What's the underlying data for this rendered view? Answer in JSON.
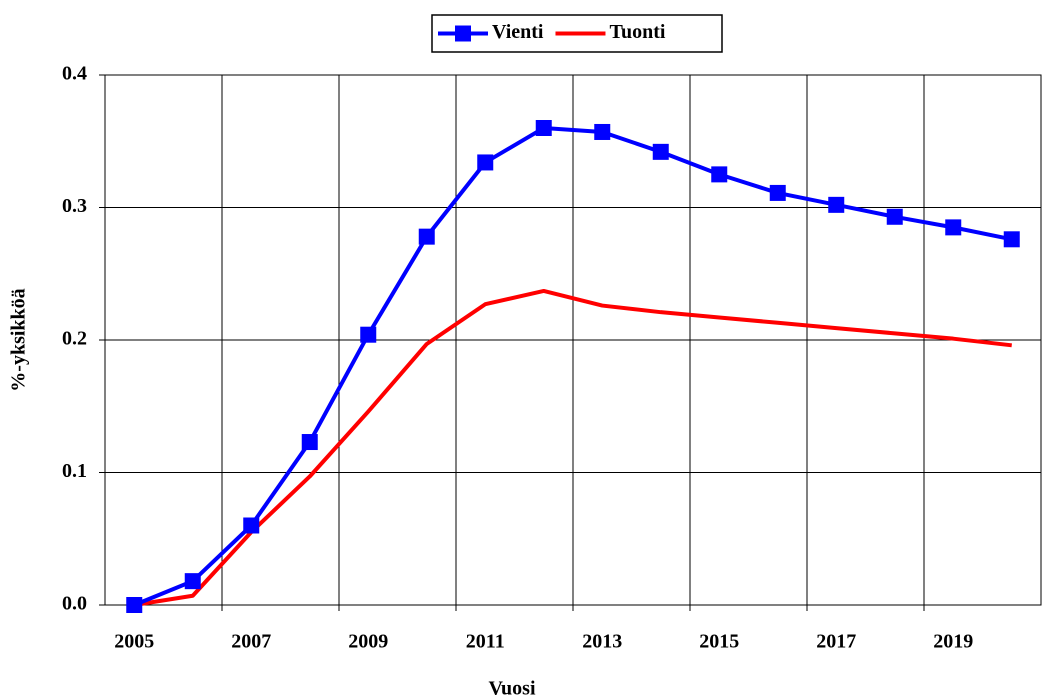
{
  "chart_data": {
    "type": "line",
    "xlabel": "Vuosi",
    "ylabel": "%-yksikköä",
    "categories": [
      "2005",
      null,
      "2007",
      null,
      "2009",
      null,
      "2011",
      null,
      "2013",
      null,
      "2015",
      null,
      "2017",
      null,
      "2019",
      null
    ],
    "series": [
      {
        "name": "Vienti",
        "color": "#0000ff",
        "marker": "square",
        "values": [
          0,
          0.018,
          0.06,
          0.123,
          0.204,
          0.278,
          0.334,
          0.36,
          0.357,
          0.342,
          0.325,
          0.311,
          0.302,
          0.293,
          0.285,
          0.276
        ]
      },
      {
        "name": "Tuonti",
        "color": "#ff0000",
        "values": [
          0,
          0.007,
          0.055,
          0.097,
          0.146,
          0.197,
          0.227,
          0.237,
          0.226,
          0.221,
          0.217,
          0.213,
          0.209,
          0.205,
          0.201,
          0.196
        ]
      }
    ],
    "ylim": [
      0,
      0.4
    ],
    "yticks": [
      {
        "value": 0,
        "label": "0.0"
      },
      0.1,
      0.2,
      0.3,
      0.4
    ],
    "grid": true,
    "legend": "top"
  }
}
